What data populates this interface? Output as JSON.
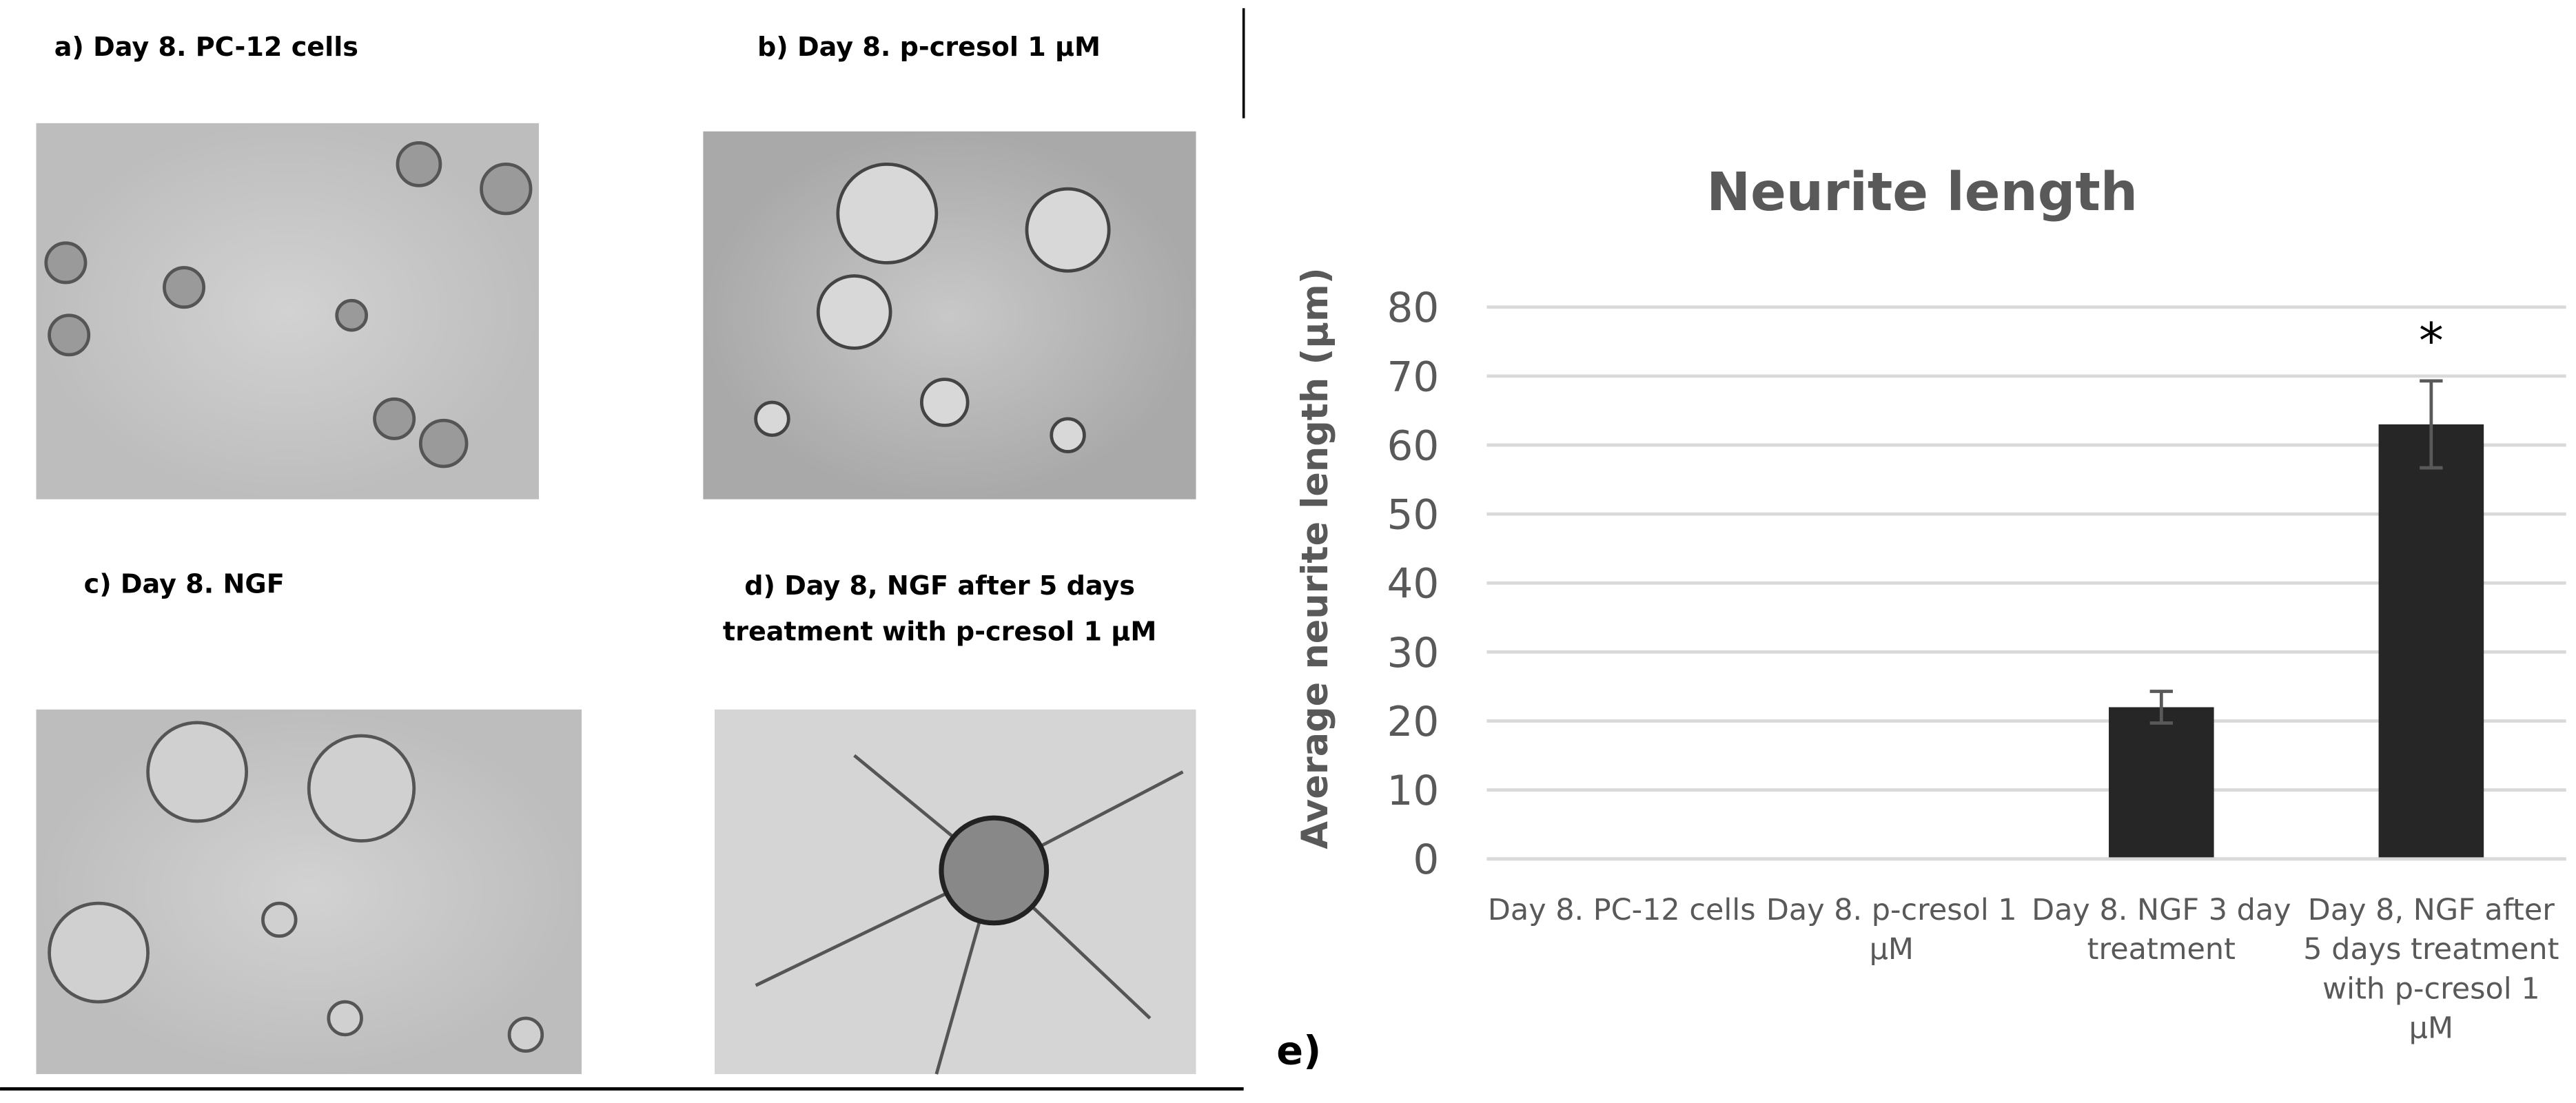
{
  "panels": [
    {
      "label": "a)  Day 8.  PC-12 cells"
    },
    {
      "label": "b)  Day 8. p-cresol 1 µM"
    },
    {
      "label": "c)  Day 8. NGF"
    },
    {
      "lines": [
        "d)  Day 8, NGF  after 5 days",
        "treatment with p-cresol 1 µM"
      ]
    }
  ],
  "panel_label": "e)",
  "chart_data": {
    "type": "bar",
    "title": "Neurite length",
    "y_label": "Average neurite length (µm)",
    "categories": [
      "Day 8.  PC-12 cells",
      "Day 8. p-cresol 1 µM",
      "Day 8. NGF 3 day treatment",
      "Day 8, NGF after 5 days treatment with p-cresol 1 µM"
    ],
    "values": [
      0,
      0,
      22,
      63
    ],
    "errors": [
      null,
      null,
      2.3,
      6.3
    ],
    "color": "#262626",
    "annotations": [
      {
        "category": 3,
        "text": "*"
      }
    ],
    "ylim": [
      0,
      80
    ],
    "yticks": [
      0,
      10,
      20,
      30,
      40,
      50,
      60,
      70,
      80
    ],
    "grid": true
  }
}
